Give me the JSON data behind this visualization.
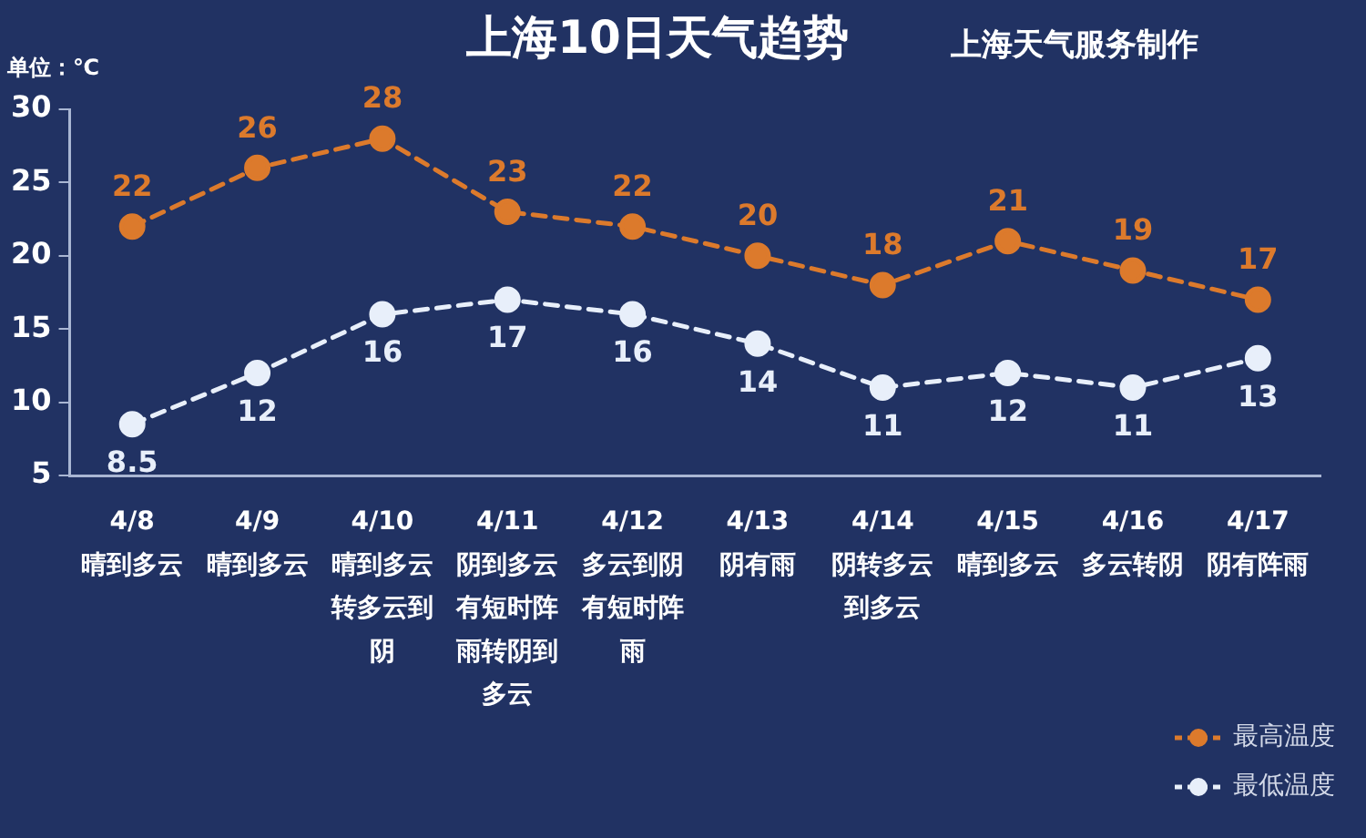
{
  "chart_data": {
    "type": "line",
    "title": "上海10日天气趋势",
    "subtitle": "上海天气服务制作",
    "ylabel": "单位：℃",
    "categories": [
      "4/8\n晴到多云",
      "4/9\n晴到多云",
      "4/10\n晴到多云转多云到阴",
      "4/11\n阴到多云有短时阵雨转阴到多云",
      "4/12\n多云到阴有短时阵雨",
      "4/13\n阴有雨",
      "4/14\n阴转多云到多云",
      "4/15\n晴到多云",
      "4/16\n多云转阴",
      "4/17\n阴有阵雨"
    ],
    "series": [
      {
        "name": "最高温度",
        "color": "#dc7a2c",
        "values": [
          22,
          26,
          28,
          23,
          22,
          20,
          18,
          21,
          19,
          17
        ]
      },
      {
        "name": "最低温度",
        "color": "#e8effa",
        "values": [
          8.5,
          12,
          16,
          17,
          16,
          14,
          11,
          12,
          11,
          13
        ]
      }
    ],
    "ylim": [
      5,
      30
    ],
    "yticks": [
      5,
      10,
      15,
      20,
      25,
      30
    ],
    "grid": false,
    "legend": "bottom right",
    "marker": "circle",
    "line_style": "dashed",
    "data_labels": true
  }
}
